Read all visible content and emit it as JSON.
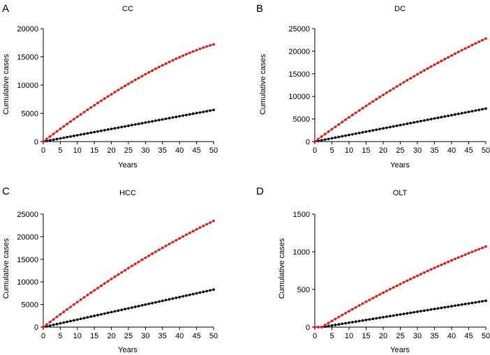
{
  "chart_data": [
    {
      "panel": "A",
      "title": "CC",
      "type": "scatter",
      "xlabel": "Years",
      "ylabel": "Cumulative cases",
      "xlim": [
        0,
        50
      ],
      "ylim": [
        0,
        20000
      ],
      "xticks": [
        0,
        5,
        10,
        15,
        20,
        25,
        30,
        35,
        40,
        45,
        50
      ],
      "yticks": [
        0,
        5000,
        10000,
        15000,
        20000
      ],
      "series": [
        {
          "name": "red",
          "color": "#e0241b",
          "start": 0,
          "end": 17200,
          "shape": "concave"
        },
        {
          "name": "black",
          "color": "#111111",
          "start": 0,
          "end": 5600,
          "shape": "linear"
        }
      ]
    },
    {
      "panel": "B",
      "title": "DC",
      "type": "scatter",
      "xlabel": "Years",
      "ylabel": "Cumulative cases",
      "xlim": [
        0,
        50
      ],
      "ylim": [
        0,
        25000
      ],
      "xticks": [
        0,
        5,
        10,
        15,
        20,
        25,
        30,
        35,
        40,
        45,
        50
      ],
      "yticks": [
        0,
        5000,
        10000,
        15000,
        20000,
        25000
      ],
      "series": [
        {
          "name": "red",
          "color": "#e0241b",
          "start": 0,
          "end": 22800,
          "shape": "slight"
        },
        {
          "name": "black",
          "color": "#111111",
          "start": 0,
          "end": 7300,
          "shape": "linear"
        }
      ]
    },
    {
      "panel": "C",
      "title": "HCC",
      "type": "scatter",
      "xlabel": "Years",
      "ylabel": "Cumulative cases",
      "xlim": [
        0,
        50
      ],
      "ylim": [
        0,
        25000
      ],
      "xticks": [
        0,
        5,
        10,
        15,
        20,
        25,
        30,
        35,
        40,
        45,
        50
      ],
      "yticks": [
        0,
        5000,
        10000,
        15000,
        20000,
        25000
      ],
      "series": [
        {
          "name": "red",
          "color": "#e0241b",
          "start": 0,
          "end": 23500,
          "shape": "slight"
        },
        {
          "name": "black",
          "color": "#111111",
          "start": 0,
          "end": 8300,
          "shape": "linear"
        }
      ]
    },
    {
      "panel": "D",
      "title": "OLT",
      "type": "scatter",
      "xlabel": "Years",
      "ylabel": "Cumulative cases",
      "xlim": [
        0,
        50
      ],
      "ylim": [
        0,
        1500
      ],
      "xticks": [
        0,
        5,
        10,
        15,
        20,
        25,
        30,
        35,
        40,
        45,
        50
      ],
      "yticks": [
        0,
        500,
        1000,
        1500
      ],
      "series": [
        {
          "name": "red",
          "color": "#e0241b",
          "start": 2,
          "end": 1070,
          "shape": "slight"
        },
        {
          "name": "black",
          "color": "#111111",
          "start": 2,
          "end": 350,
          "shape": "linear"
        }
      ]
    }
  ]
}
